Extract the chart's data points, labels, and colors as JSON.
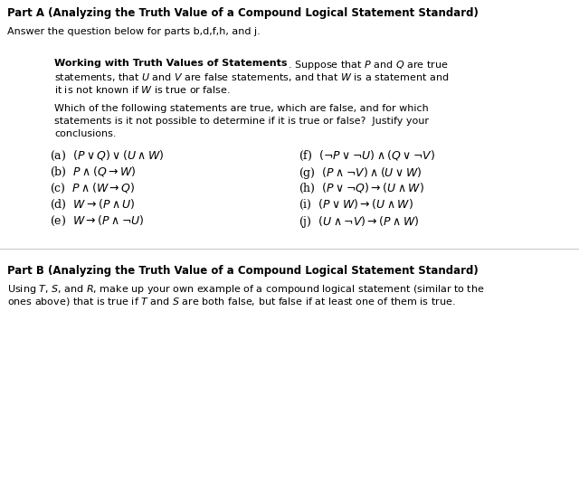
{
  "bg_color": "#ffffff",
  "text_color": "#000000",
  "figsize": [
    6.4,
    5.43
  ],
  "dpi": 100,
  "part_a_title": "Part A (Analyzing the Truth Value of a Compound Logical Statement Standard)",
  "part_a_subtitle": "Answer the question below for parts b,d,f,h, and j.",
  "box_bold": "Working with Truth Values of Statements",
  "box_line1_normal": ". Suppose that $P$ and $Q$ are true",
  "box_line2": "statements, that $U$ and $V$ are false statements, and that $W$ is a statement and",
  "box_line3": "it is not known if $W$ is true or false.",
  "which_line1": "Which of the following statements are true, which are false, and for which",
  "which_line2": "statements is it not possible to determine if it is true or false?  Justify your",
  "which_line3": "conclusions.",
  "items_left": [
    "(a)  $(P \\vee Q) \\vee (U \\wedge W)$",
    "(b)  $P \\wedge (Q \\rightarrow W)$",
    "(c)  $P \\wedge (W \\rightarrow Q)$",
    "(d)  $W \\rightarrow (P \\wedge U)$",
    "(e)  $W \\rightarrow (P \\wedge \\neg U)$"
  ],
  "items_right": [
    "(f)  $(\\neg P \\vee \\neg U) \\wedge (Q \\vee \\neg V)$",
    "(g)  $(P \\wedge \\neg V) \\wedge (U \\vee W)$",
    "(h)  $(P \\vee \\neg Q) \\rightarrow (U \\wedge W)$",
    "(i)  $(P \\vee W) \\rightarrow (U \\wedge W)$",
    "(j)  $(U \\wedge \\neg V) \\rightarrow (P \\wedge W)$"
  ],
  "part_b_title": "Part B (Analyzing the Truth Value of a Compound Logical Statement Standard)",
  "part_b_line1": "Using $T$, $S$, and $R$, make up your own example of a compound logical statement (similar to the",
  "part_b_line2": "ones above) that is true if $T$ and $S$ are both false, but false if at least one of them is true."
}
